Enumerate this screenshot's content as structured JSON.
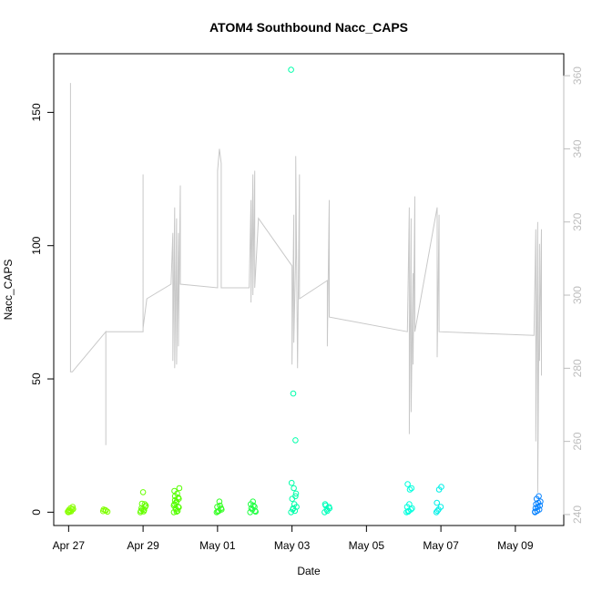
{
  "chart_data": {
    "type": "scatter",
    "title": "ATOM4 Southbound Nacc_CAPS",
    "xlabel": "Date",
    "ylabel": "Nacc_CAPS",
    "x_ticks": [
      "Apr 27",
      "Apr 29",
      "May 01",
      "May 03",
      "May 05",
      "May 07",
      "May 09"
    ],
    "x_range_days": [
      26.6,
      40.3
    ],
    "x_tick_days": [
      27,
      29,
      31,
      33,
      35,
      37,
      39
    ],
    "ylim": [
      -5,
      172
    ],
    "y_ticks": [
      0,
      50,
      100,
      150
    ],
    "y2lim": [
      237,
      366
    ],
    "y2_ticks": [
      240,
      260,
      280,
      300,
      320,
      340,
      360
    ],
    "grid": false,
    "colors": {
      "points_start": "#7fff00",
      "points_mid": "#00ffcc",
      "points_end": "#0a84ff",
      "line": "#c8c8c8",
      "right_axis": "#bdbdbd"
    },
    "series": [
      {
        "kind": "points",
        "axis": "left",
        "clusters": [
          {
            "day": 27.05,
            "color": "#88ff00",
            "values": [
              0.2,
              0.5,
              1,
              0,
              1.5,
              2,
              0.8,
              0.3,
              1.2,
              0.1
            ]
          },
          {
            "day": 28.0,
            "color": "#7fff00",
            "values": [
              0.4,
              0.8,
              0.2,
              1.0,
              0.6
            ]
          },
          {
            "day": 29.0,
            "color": "#66ff00",
            "values": [
              0,
              1,
              3,
              0.5,
              7.5,
              2,
              1.5,
              0.3,
              2.5,
              3.2,
              0.8
            ]
          },
          {
            "day": 29.9,
            "color": "#55ff00",
            "values": [
              0,
              1,
              2,
              3,
              4,
              5,
              6,
              7,
              9,
              1.5,
              0.5,
              2.5,
              3.5,
              5.5,
              8,
              0.2,
              1.8,
              4.5
            ]
          },
          {
            "day": 31.05,
            "color": "#33ff22",
            "values": [
              0,
              0.5,
              1.5,
              2,
              4,
              1,
              0.3,
              2.5
            ]
          },
          {
            "day": 31.95,
            "color": "#22ff44",
            "values": [
              0,
              1,
              2,
              3,
              4,
              0.5,
              1.5,
              2.5,
              0.2
            ]
          },
          {
            "day": 33.05,
            "color": "#00ffaa",
            "values": [
              166,
              44.5,
              27,
              11,
              9,
              7,
              5,
              3,
              2,
              1,
              0.5,
              0,
              1.5,
              6
            ]
          },
          {
            "day": 33.95,
            "color": "#00ffbb",
            "values": [
              0,
              1,
              2,
              3,
              0.5,
              1.5,
              2.5
            ]
          },
          {
            "day": 36.15,
            "color": "#00ffdd",
            "values": [
              0,
              0.5,
              1,
              2,
              3,
              9,
              10.5,
              8.5,
              1.5,
              0.2
            ]
          },
          {
            "day": 36.95,
            "color": "#00f0e8",
            "values": [
              0,
              1,
              2,
              3.5,
              8.5,
              9.5,
              0.5
            ]
          },
          {
            "day": 39.6,
            "color": "#0a84ff",
            "values": [
              0,
              0.5,
              1,
              1.5,
              2,
              2.5,
              3,
              3.5,
              4,
              5,
              6,
              0.2
            ]
          }
        ]
      },
      {
        "kind": "line",
        "axis": "right",
        "polyline": [
          [
            27.05,
            289
          ],
          [
            27.05,
            295
          ],
          [
            27.05,
            282
          ],
          [
            27.05,
            358
          ],
          [
            27.05,
            279
          ],
          [
            27.1,
            279
          ],
          [
            28.0,
            290
          ],
          [
            28.0,
            259
          ],
          [
            28.0,
            290
          ],
          [
            29.0,
            290
          ],
          [
            29.0,
            333
          ],
          [
            29.0,
            294
          ],
          [
            29.0,
            329
          ],
          [
            29.0,
            291
          ],
          [
            29.1,
            299
          ],
          [
            29.75,
            303
          ],
          [
            29.8,
            317
          ],
          [
            29.8,
            282
          ],
          [
            29.85,
            324
          ],
          [
            29.85,
            280
          ],
          [
            29.9,
            321
          ],
          [
            29.9,
            281
          ],
          [
            29.95,
            317
          ],
          [
            29.95,
            286
          ],
          [
            30.0,
            330
          ],
          [
            30.0,
            303
          ],
          [
            31.0,
            302
          ],
          [
            31.0,
            334
          ],
          [
            31.05,
            340
          ],
          [
            31.1,
            336
          ],
          [
            31.1,
            302
          ],
          [
            31.85,
            302
          ],
          [
            31.9,
            326
          ],
          [
            31.9,
            298
          ],
          [
            31.95,
            333
          ],
          [
            31.95,
            300
          ],
          [
            32.0,
            334
          ],
          [
            32.0,
            302
          ],
          [
            32.1,
            321
          ],
          [
            33.0,
            308
          ],
          [
            33.0,
            281
          ],
          [
            33.05,
            322
          ],
          [
            33.05,
            287
          ],
          [
            33.1,
            311
          ],
          [
            33.1,
            338
          ],
          [
            33.15,
            280
          ],
          [
            33.2,
            333
          ],
          [
            33.2,
            299
          ],
          [
            33.95,
            304
          ],
          [
            33.95,
            286
          ],
          [
            34.0,
            326
          ],
          [
            34.0,
            294
          ],
          [
            36.1,
            290
          ],
          [
            36.15,
            324
          ],
          [
            36.15,
            262
          ],
          [
            36.2,
            321
          ],
          [
            36.2,
            268
          ],
          [
            36.25,
            306
          ],
          [
            36.25,
            281
          ],
          [
            36.3,
            327
          ],
          [
            36.3,
            290
          ],
          [
            36.9,
            324
          ],
          [
            36.9,
            283
          ],
          [
            36.95,
            322
          ],
          [
            36.95,
            290
          ],
          [
            39.5,
            289
          ],
          [
            39.55,
            318
          ],
          [
            39.55,
            260
          ],
          [
            39.6,
            320
          ],
          [
            39.6,
            246
          ],
          [
            39.65,
            314
          ],
          [
            39.65,
            282
          ],
          [
            39.7,
            318
          ],
          [
            39.7,
            278
          ]
        ]
      }
    ]
  }
}
